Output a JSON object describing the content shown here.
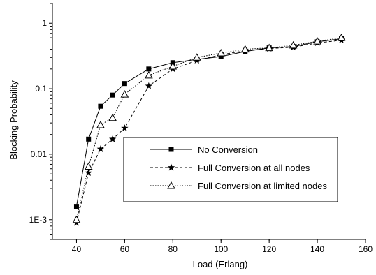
{
  "chart_data": {
    "type": "line",
    "xlabel": "Load (Erlang)",
    "ylabel": "Blocking Probability",
    "xlim": [
      30,
      160
    ],
    "ylim": [
      0.0005,
      2
    ],
    "y_scale": "log",
    "x_ticks": [
      40,
      60,
      80,
      100,
      120,
      140,
      160
    ],
    "y_ticks": [
      {
        "value": 0.001,
        "label": "1E-3"
      },
      {
        "value": 0.01,
        "label": "0.01"
      },
      {
        "value": 0.1,
        "label": "0.1"
      },
      {
        "value": 1,
        "label": "1"
      }
    ],
    "grid": false,
    "legend_position": "lower-right",
    "series": [
      {
        "name": "No Conversion",
        "marker": "filled-square",
        "line_style": "solid",
        "x": [
          40,
          45,
          50,
          55,
          60,
          70,
          80,
          90,
          100,
          110,
          120,
          130,
          140,
          150
        ],
        "y": [
          0.0016,
          0.017,
          0.054,
          0.08,
          0.12,
          0.2,
          0.25,
          0.28,
          0.31,
          0.37,
          0.42,
          0.44,
          0.52,
          0.58
        ]
      },
      {
        "name": "Full Conversion at all nodes",
        "marker": "filled-star",
        "line_style": "dashed",
        "x": [
          40,
          45,
          50,
          55,
          60,
          70,
          80,
          90,
          100,
          110,
          120,
          130,
          140,
          150
        ],
        "y": [
          0.0009,
          0.0052,
          0.012,
          0.017,
          0.025,
          0.11,
          0.2,
          0.27,
          0.33,
          0.38,
          0.41,
          0.43,
          0.5,
          0.55
        ]
      },
      {
        "name": "Full Conversion at limited nodes",
        "marker": "open-triangle",
        "line_style": "dotted",
        "x": [
          40,
          45,
          50,
          55,
          60,
          70,
          80,
          90,
          100,
          110,
          120,
          130,
          140,
          150
        ],
        "y": [
          0.001,
          0.0065,
          0.028,
          0.036,
          0.082,
          0.16,
          0.22,
          0.3,
          0.35,
          0.4,
          0.42,
          0.46,
          0.53,
          0.6
        ]
      }
    ]
  }
}
